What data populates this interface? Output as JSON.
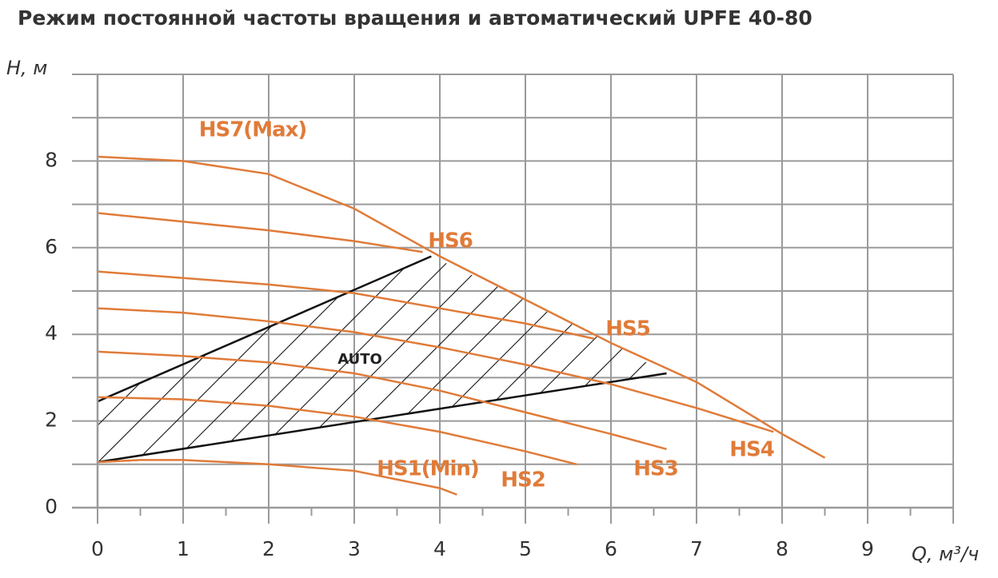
{
  "chart_data": {
    "type": "line",
    "title": "Режим постоянной частоты вращения и автоматический  UPFE 40-80",
    "y_label": "H, м",
    "x_label": "Q, м³/ч",
    "xlim": [
      0,
      10
    ],
    "xticks": [
      0,
      1,
      2,
      3,
      4,
      5,
      6,
      7,
      8,
      9
    ],
    "ylim": [
      0,
      10
    ],
    "yticks": [
      0,
      2,
      4,
      6,
      8
    ],
    "minor_xticks": [
      10
    ],
    "minor_yticks": [
      1,
      3,
      5,
      7,
      9,
      10
    ],
    "grid": true,
    "series": [
      {
        "name": "HS7(Max)",
        "color": "#e07b39",
        "x": [
          0,
          1,
          2,
          3,
          4,
          5,
          6,
          7,
          8,
          8.5
        ],
        "values": [
          8.1,
          8.0,
          7.7,
          6.9,
          5.8,
          4.8,
          3.8,
          2.9,
          1.7,
          1.15
        ]
      },
      {
        "name": "HS6",
        "color": "#e07b39",
        "x": [
          0,
          1,
          2,
          3,
          3.8
        ],
        "values": [
          6.8,
          6.6,
          6.4,
          6.15,
          5.9
        ]
      },
      {
        "name": "HS5",
        "color": "#e07b39",
        "x": [
          0,
          1,
          2,
          3,
          4,
          5,
          5.8
        ],
        "values": [
          5.45,
          5.3,
          5.15,
          4.95,
          4.6,
          4.25,
          3.9
        ]
      },
      {
        "name": "HS4",
        "color": "#e07b39",
        "x": [
          0,
          1,
          2,
          3,
          4,
          5,
          6,
          7,
          7.9
        ],
        "values": [
          4.6,
          4.5,
          4.3,
          4.05,
          3.7,
          3.3,
          2.85,
          2.3,
          1.75
        ]
      },
      {
        "name": "HS3",
        "color": "#e07b39",
        "x": [
          0,
          1,
          2,
          3,
          4,
          5,
          6,
          6.65
        ],
        "values": [
          3.6,
          3.5,
          3.35,
          3.1,
          2.7,
          2.2,
          1.7,
          1.35
        ]
      },
      {
        "name": "HS2",
        "color": "#e07b39",
        "x": [
          0,
          1,
          2,
          3,
          4,
          5,
          5.6
        ],
        "values": [
          2.55,
          2.5,
          2.35,
          2.1,
          1.75,
          1.3,
          1.0
        ]
      },
      {
        "name": "HS1(Min)",
        "color": "#e07b39",
        "x": [
          0,
          0.5,
          1,
          2,
          3,
          4,
          4.2
        ],
        "values": [
          1.05,
          1.1,
          1.1,
          1.0,
          0.85,
          0.45,
          0.3
        ]
      }
    ],
    "region": {
      "label": "AUTO",
      "color": "#111111",
      "upper": {
        "x": [
          0,
          3.9
        ],
        "values": [
          2.45,
          5.8
        ]
      },
      "lower": {
        "x": [
          0,
          6.65
        ],
        "values": [
          1.05,
          3.1
        ]
      },
      "right": {
        "x": [
          3.9,
          5,
          6,
          6.65
        ],
        "values": [
          5.8,
          4.8,
          3.8,
          3.1
        ]
      }
    }
  }
}
